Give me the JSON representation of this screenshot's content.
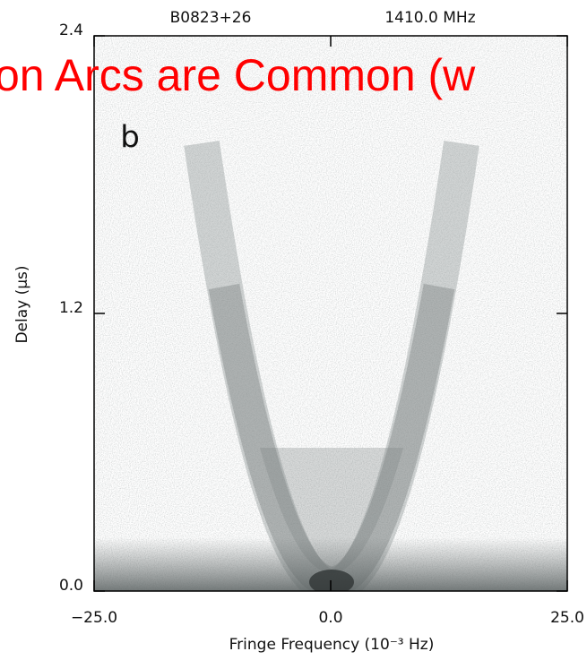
{
  "chart_data": {
    "type": "image",
    "title": "on Arcs are Common (w",
    "source": "B0823+26",
    "frequency": "1410.0 MHz",
    "panel_label": "b",
    "x_label": "Fringe Frequency (10⁻³ Hz)",
    "y_label": "Delay (μs)",
    "xlim": [
      -25,
      25
    ],
    "ylim": [
      0,
      2.4
    ],
    "xticks": [
      {
        "value": -25,
        "label": "−25.0"
      },
      {
        "value": 0,
        "label": "0.0"
      },
      {
        "value": 25,
        "label": "25.0"
      }
    ],
    "yticks": [
      {
        "value": 0,
        "label": "0.0"
      },
      1.2,
      2.4
    ]
  }
}
